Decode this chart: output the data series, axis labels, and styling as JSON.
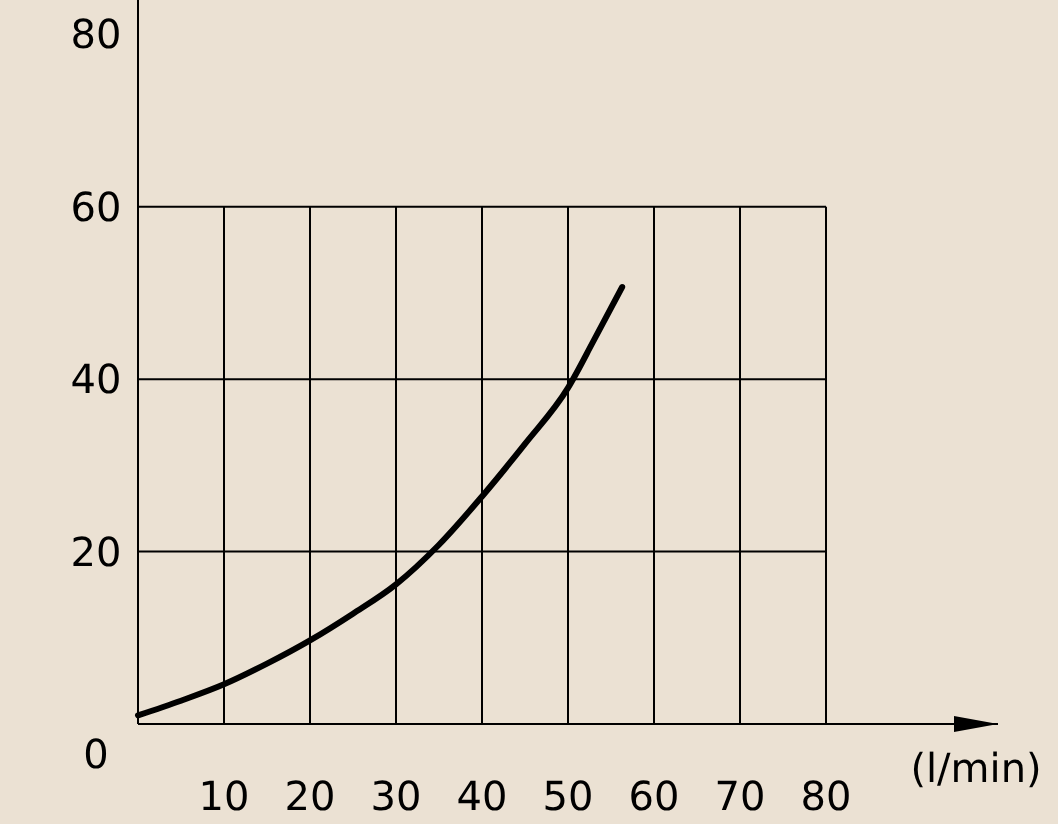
{
  "chart_data": {
    "type": "line",
    "xlabel": "(l/min)",
    "x": [
      0,
      5,
      10,
      15,
      20,
      25,
      30,
      35,
      40,
      45,
      50,
      53,
      56.3
    ],
    "series": [
      {
        "color": "#000000",
        "values": [
          1,
          2.7,
          4.6,
          7,
          9.7,
          12.8,
          16.2,
          20.8,
          26.4,
          32.5,
          39,
          44.5,
          50.7
        ]
      }
    ],
    "xlim": [
      0,
      100
    ],
    "ylim": [
      0,
      84
    ],
    "xticks": [
      10,
      20,
      30,
      40,
      50,
      60,
      70,
      80
    ],
    "yticks": [
      0,
      20,
      40,
      60,
      80
    ],
    "grid": true,
    "marker": "none",
    "line_style": "solid"
  }
}
